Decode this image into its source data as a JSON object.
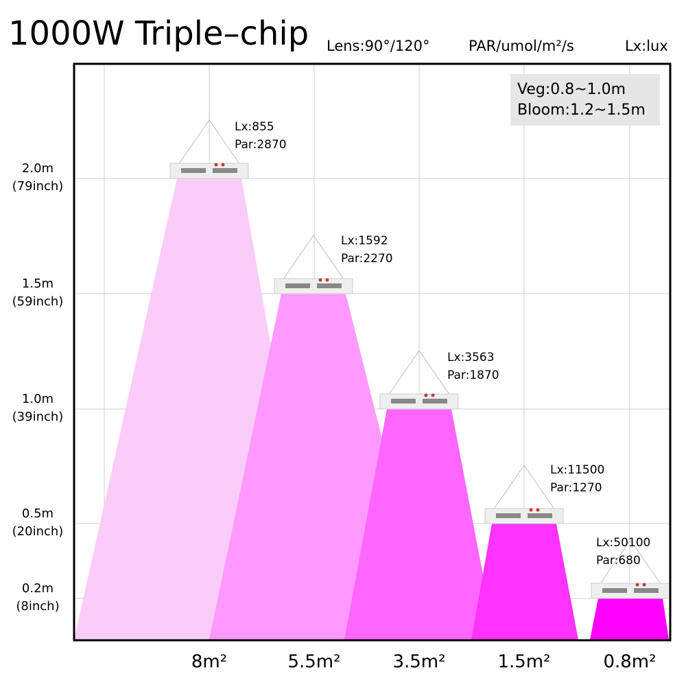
{
  "header": {
    "title": "1000W Triple–chip",
    "notes": [
      "Lens:90°/120°",
      "PAR/umol/m²/s",
      "Lx:lux"
    ]
  },
  "legend": [
    "Veg:0.8~1.0m",
    "Bloom:1.2~1.5m"
  ],
  "heights": [
    {
      "metric": "2.0m",
      "imperial": "(79inch)"
    },
    {
      "metric": "1.5m",
      "imperial": "(59inch)"
    },
    {
      "metric": "1.0m",
      "imperial": "(39inch)"
    },
    {
      "metric": "0.5m",
      "imperial": "(20inch)"
    },
    {
      "metric": "0.2m",
      "imperial": "(8inch)"
    }
  ],
  "lamps": [
    {
      "lx": "Lx:855",
      "par": "Par:2870",
      "area": "8m²"
    },
    {
      "lx": "Lx:1592",
      "par": "Par:2270",
      "area": "5.5m²"
    },
    {
      "lx": "Lx:3563",
      "par": "Par:1870",
      "area": "3.5m²"
    },
    {
      "lx": "Lx:11500",
      "par": "Par:1270",
      "area": "1.5m²"
    },
    {
      "lx": "Lx:50100",
      "par": "Par:680",
      "area": "0.8m²"
    }
  ]
}
